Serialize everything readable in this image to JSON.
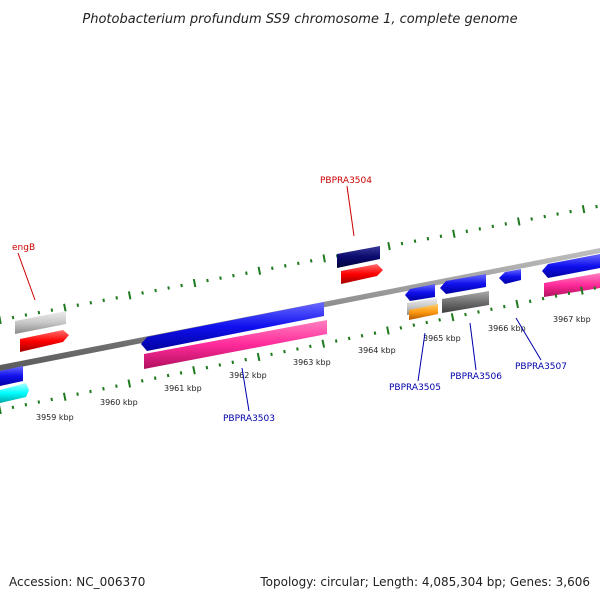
{
  "title": "Photobacterium profundum SS9 chromosome 1, complete genome",
  "footer": {
    "accession": "Accession: NC_006370",
    "summary": "Topology: circular; Length: 4,085,304 bp; Genes: 3,606"
  },
  "colors": {
    "backbone": "#808080",
    "tick": "#1e7a1e",
    "label_red": "#cc0000",
    "label_blue": "#0000aa",
    "leader": "#0000aa"
  },
  "scale_ticks": [
    {
      "label": "3959 kbp"
    },
    {
      "label": "3960 kbp"
    },
    {
      "label": "3961 kbp"
    },
    {
      "label": "3962 kbp"
    },
    {
      "label": "3963 kbp"
    },
    {
      "label": "3964 kbp"
    },
    {
      "label": "3965 kbp"
    },
    {
      "label": "3966 kbp"
    },
    {
      "label": "3967 kbp"
    }
  ],
  "gene_labels": [
    {
      "name": "engB",
      "color": "red"
    },
    {
      "name": "PBPRA3504",
      "color": "red"
    },
    {
      "name": "PBPRA3503",
      "color": "blue"
    },
    {
      "name": "PBPRA3505",
      "color": "blue"
    },
    {
      "name": "PBPRA3506",
      "color": "blue"
    },
    {
      "name": "PBPRA3507",
      "color": "blue"
    }
  ]
}
